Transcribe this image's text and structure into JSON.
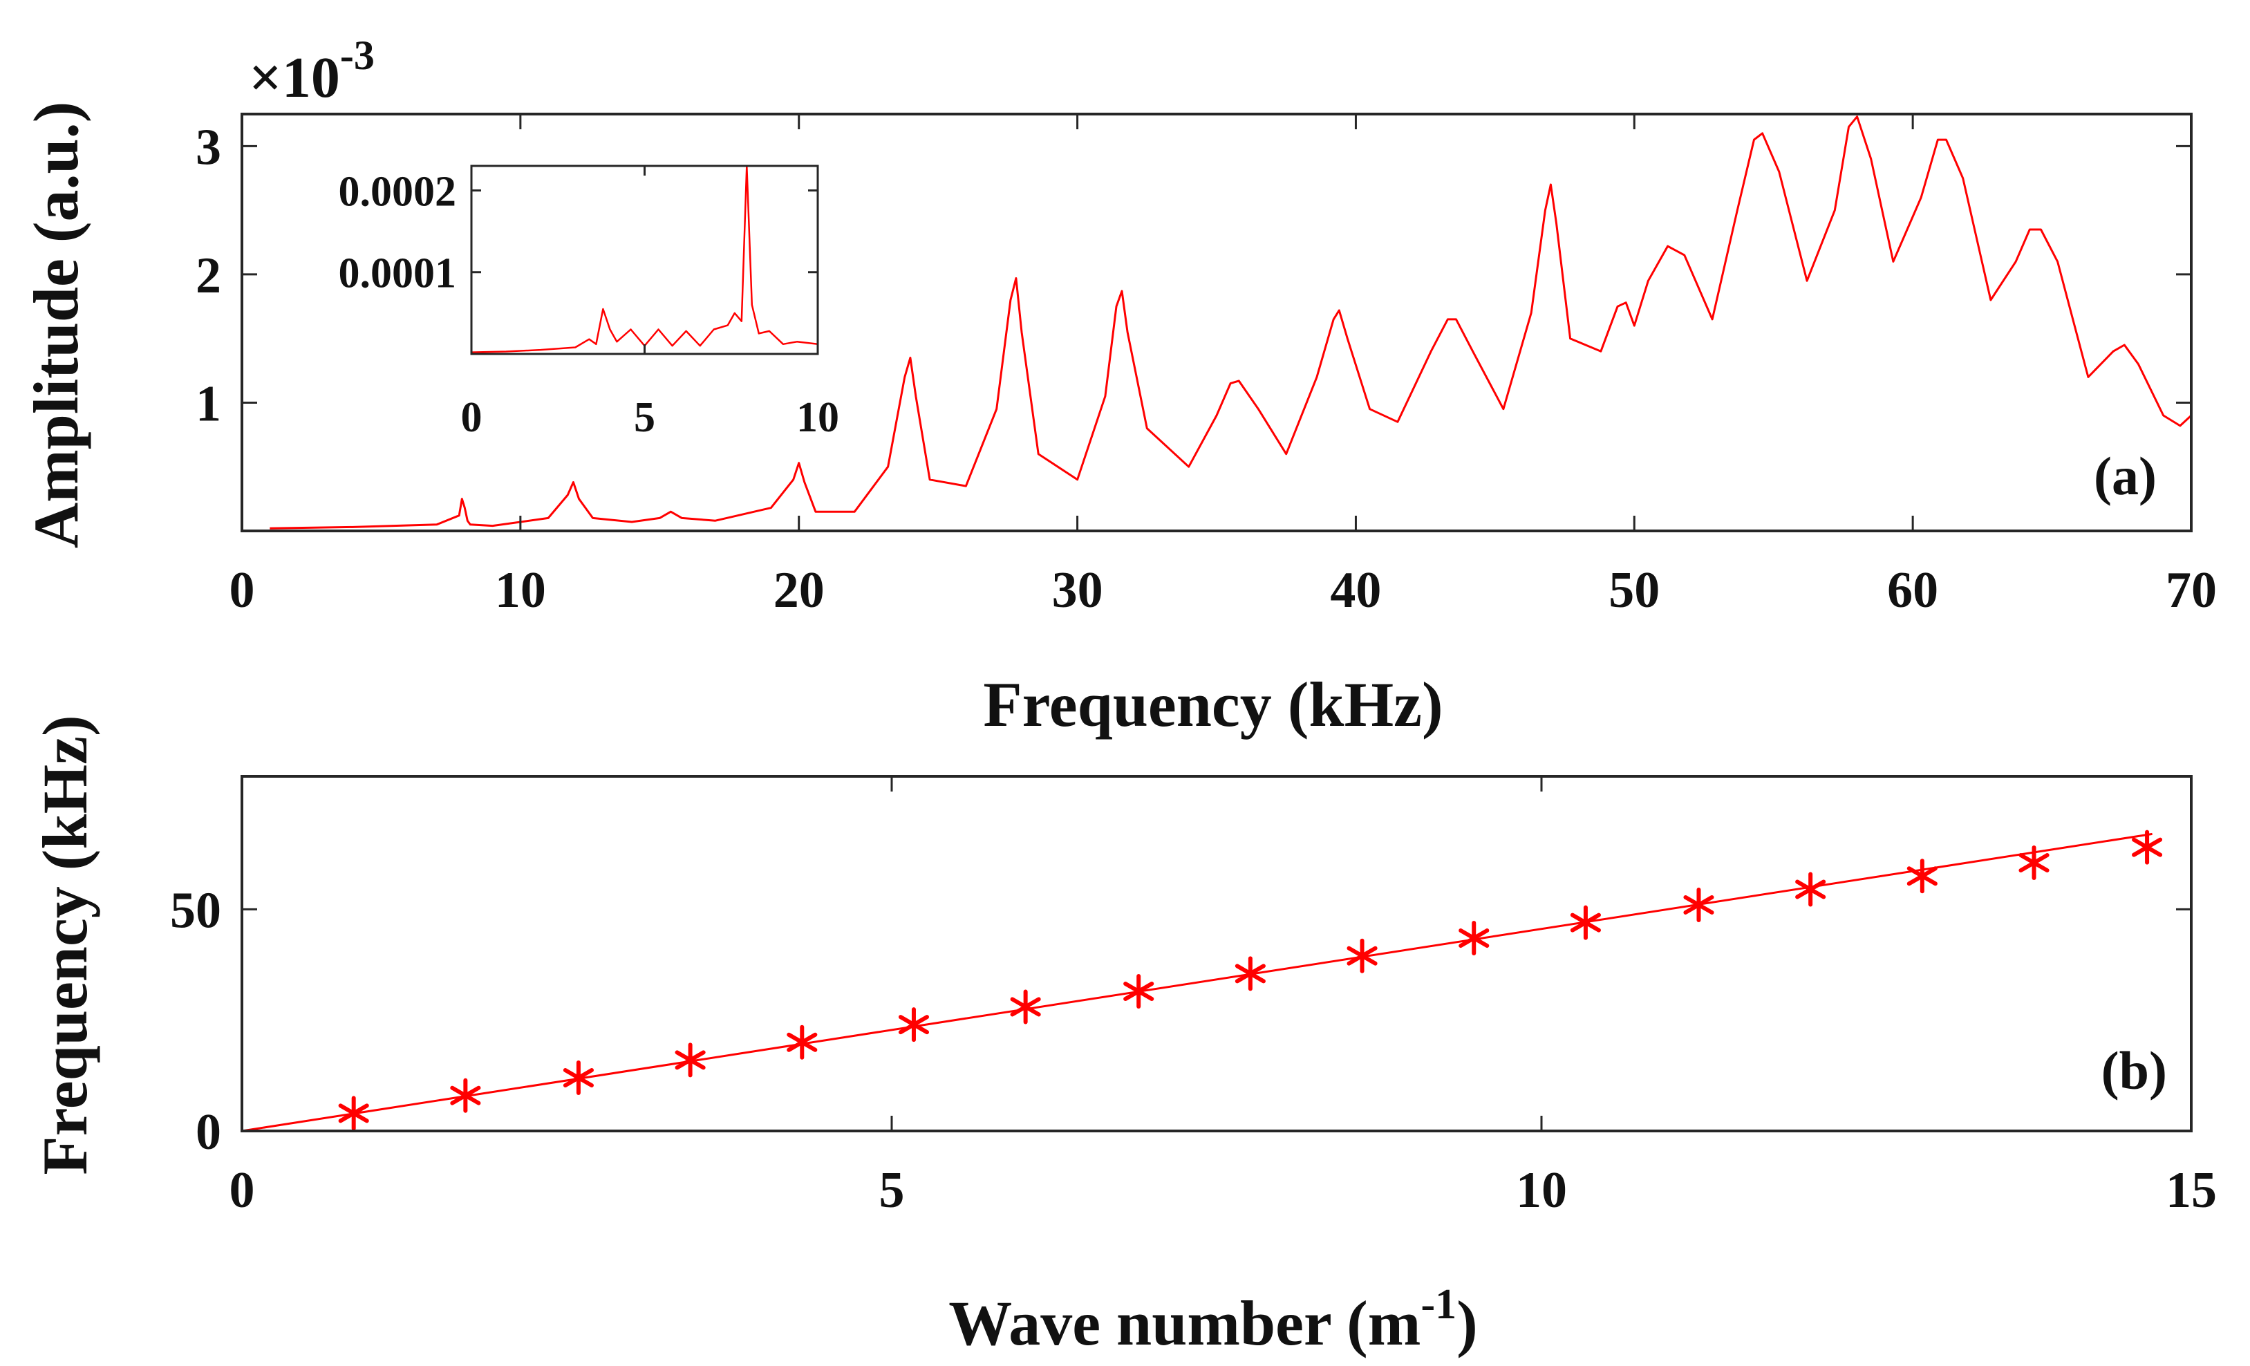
{
  "colors": {
    "series": "#ff0000",
    "axis": "#262626",
    "background": "#ffffff"
  },
  "chart_data": [
    {
      "type": "line",
      "panel_label": "(a)",
      "xlabel": "Frequency (kHz)",
      "ylabel": "Amplitude (a.u.)",
      "y_exponent_label": "×10",
      "y_exponent_power": "-3",
      "xlim": [
        0,
        70
      ],
      "ylim": [
        0,
        3.25
      ],
      "y_scale_note": "values in units of 1e-3",
      "grid": false,
      "legend": "none",
      "x_ticks": [
        0,
        10,
        20,
        30,
        40,
        50,
        60,
        70
      ],
      "x_tick_labels": [
        "0",
        "10",
        "20",
        "30",
        "40",
        "50",
        "60",
        "70"
      ],
      "y_ticks": [
        1,
        2,
        3
      ],
      "y_tick_labels": [
        "1",
        "2",
        "3"
      ],
      "series": [
        {
          "x": [
            1,
            4,
            7,
            7.8,
            7.9,
            8.0,
            8.1,
            8.2,
            9,
            11,
            11.7,
            11.9,
            12.1,
            12.6,
            14,
            15,
            15.4,
            15.8,
            17,
            19,
            19.8,
            20.0,
            20.2,
            20.6,
            22,
            23.2,
            23.8,
            24.0,
            24.2,
            24.7,
            26,
            27.1,
            27.6,
            27.8,
            28.0,
            28.6,
            30,
            31.0,
            31.4,
            31.6,
            31.8,
            32.5,
            34,
            35.0,
            35.5,
            35.8,
            36.5,
            37.5,
            38.6,
            39.2,
            39.4,
            39.7,
            40.5,
            41.5,
            42.7,
            43.3,
            43.6,
            44.2,
            45.3,
            46.3,
            46.8,
            47.0,
            47.2,
            47.7,
            48.8,
            49.4,
            49.7,
            50.0,
            50.5,
            51.2,
            51.8,
            52.8,
            53.7,
            54.3,
            54.6,
            55.2,
            56.2,
            57.2,
            57.7,
            58.0,
            58.5,
            59.3,
            60.3,
            60.9,
            61.2,
            61.8,
            62.8,
            63.7,
            64.2,
            64.6,
            65.2,
            66.3,
            67.2,
            67.6,
            68.1,
            69.0,
            69.6,
            70.0
          ],
          "y": [
            0.02,
            0.03,
            0.05,
            0.12,
            0.25,
            0.18,
            0.08,
            0.05,
            0.04,
            0.1,
            0.28,
            0.38,
            0.25,
            0.1,
            0.07,
            0.1,
            0.15,
            0.1,
            0.08,
            0.18,
            0.4,
            0.53,
            0.38,
            0.15,
            0.15,
            0.5,
            1.2,
            1.35,
            1.05,
            0.4,
            0.35,
            0.95,
            1.8,
            1.97,
            1.55,
            0.6,
            0.4,
            1.05,
            1.75,
            1.87,
            1.55,
            0.8,
            0.5,
            0.9,
            1.15,
            1.17,
            0.95,
            0.6,
            1.2,
            1.65,
            1.72,
            1.5,
            0.95,
            0.85,
            1.4,
            1.65,
            1.65,
            1.4,
            0.95,
            1.7,
            2.5,
            2.7,
            2.4,
            1.5,
            1.4,
            1.75,
            1.78,
            1.6,
            1.95,
            2.22,
            2.15,
            1.65,
            2.5,
            3.05,
            3.1,
            2.8,
            1.95,
            2.5,
            3.15,
            3.23,
            2.9,
            2.1,
            2.6,
            3.05,
            3.05,
            2.75,
            1.8,
            2.1,
            2.35,
            2.35,
            2.1,
            1.2,
            1.4,
            1.45,
            1.3,
            0.9,
            0.82,
            0.9
          ]
        }
      ],
      "inset": {
        "type": "line",
        "xlim": [
          0,
          10
        ],
        "ylim": [
          0,
          0.00023
        ],
        "x_ticks": [
          0,
          5,
          10
        ],
        "x_tick_labels": [
          "0",
          "5",
          "10"
        ],
        "y_ticks": [
          0.0001,
          0.0002
        ],
        "y_tick_labels": [
          "0.0001",
          "0.0002"
        ],
        "series": [
          {
            "x": [
              0,
              1,
              2,
              3,
              3.4,
              3.6,
              3.8,
              4.0,
              4.2,
              4.6,
              5,
              5.4,
              5.8,
              6.2,
              6.6,
              7.0,
              7.4,
              7.6,
              7.8,
              7.95,
              8.1,
              8.3,
              8.6,
              9.0,
              9.4,
              10
            ],
            "y": [
              2e-06,
              3e-06,
              5e-06,
              8e-06,
              1.8e-05,
              1.2e-05,
              5.5e-05,
              3e-05,
              1.5e-05,
              3e-05,
              1e-05,
              3e-05,
              1e-05,
              2.8e-05,
              1e-05,
              3e-05,
              3.5e-05,
              5e-05,
              4e-05,
              0.00023,
              6e-05,
              2.5e-05,
              2.8e-05,
              1.2e-05,
              1.5e-05,
              1.2e-05
            ]
          }
        ]
      }
    },
    {
      "type": "scatter",
      "panel_label": "(b)",
      "xlabel_main": "Wave number (m",
      "xlabel_sup": "-1",
      "xlabel_close": ")",
      "ylabel": "Frequency (kHz)",
      "xlim": [
        0,
        15
      ],
      "ylim": [
        0,
        80
      ],
      "grid": false,
      "legend": "none",
      "x_ticks": [
        0,
        5,
        10,
        15
      ],
      "x_tick_labels": [
        "0",
        "5",
        "10",
        "15"
      ],
      "y_ticks": [
        0,
        50
      ],
      "y_tick_labels": [
        "0",
        "50"
      ],
      "series": [
        {
          "marker": "asterisk",
          "x": [
            0.86,
            1.72,
            2.59,
            3.45,
            4.31,
            5.17,
            6.03,
            6.9,
            7.76,
            8.62,
            9.48,
            10.34,
            11.21,
            12.07,
            12.93,
            13.79,
            14.66
          ],
          "y": [
            4,
            8,
            12,
            16,
            20,
            24,
            28,
            31.5,
            35.5,
            39.5,
            43.5,
            47,
            51,
            54.5,
            57.5,
            60.5,
            64
          ]
        }
      ],
      "fit_line": {
        "x": [
          0,
          14.7
        ],
        "y": [
          0,
          67
        ]
      }
    }
  ]
}
